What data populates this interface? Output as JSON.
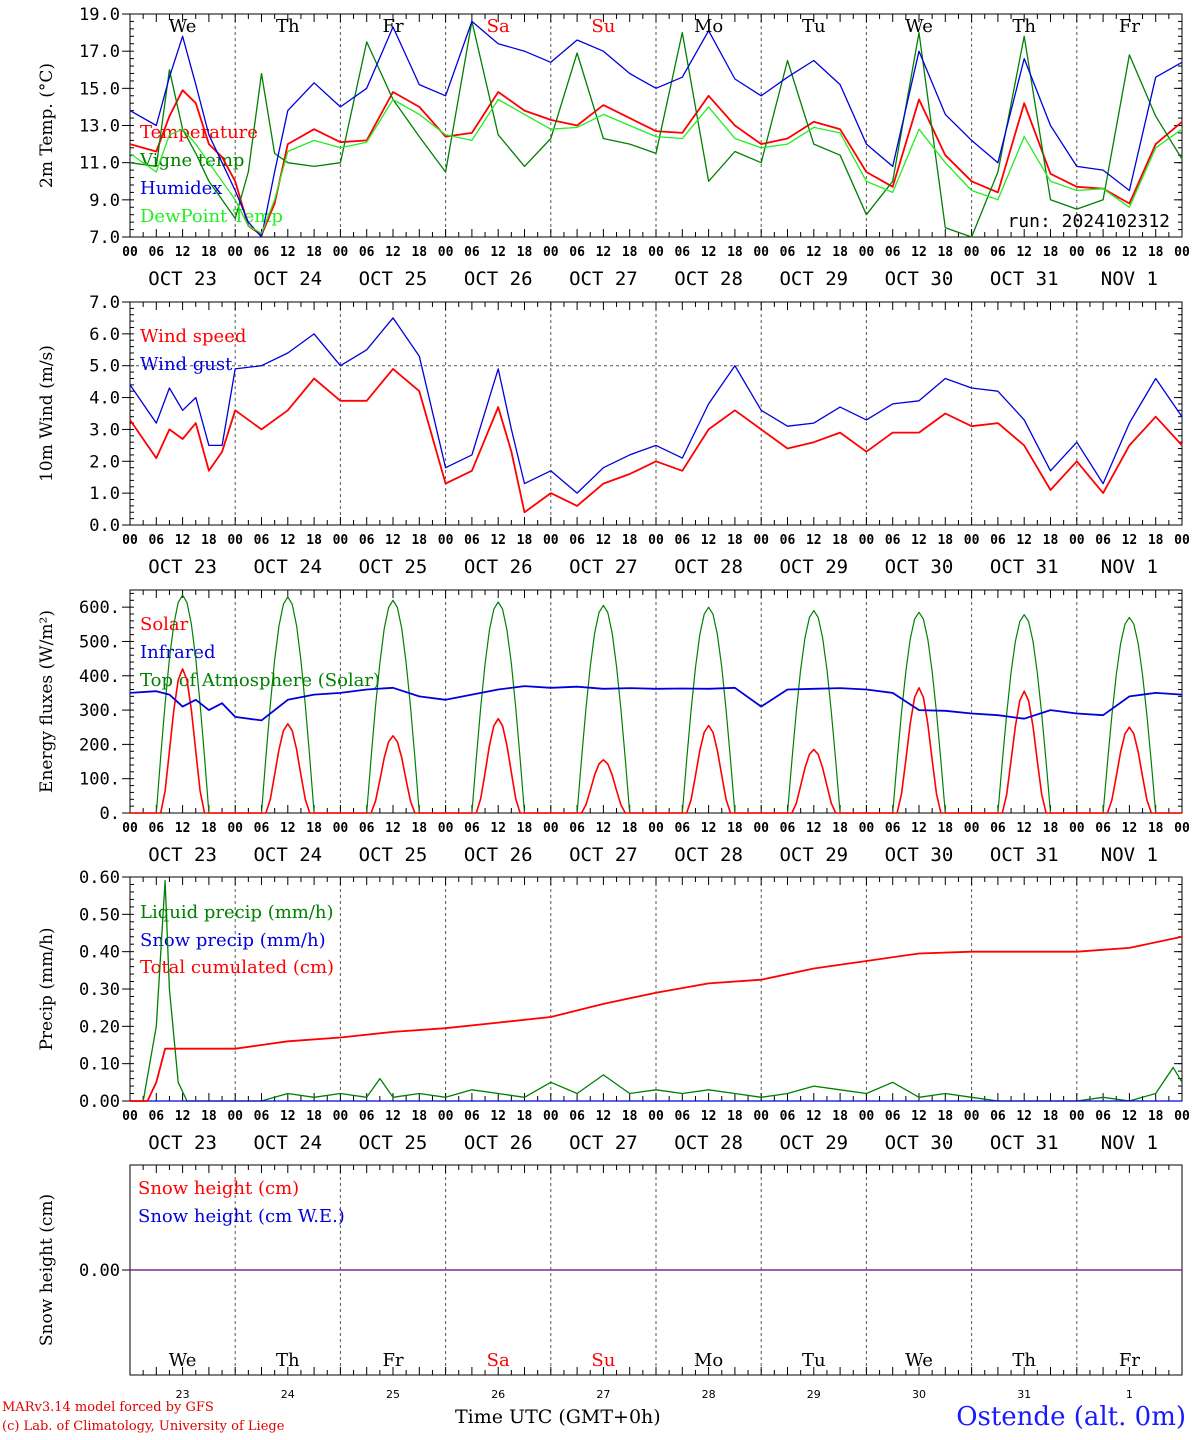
{
  "colors": {
    "red": "#ff0000",
    "green": "#008000",
    "lightgreen": "#22ee22",
    "blue": "#0000dd",
    "grid": "#555555",
    "snowline": "#7a2c9a"
  },
  "days": [
    "OCT 23",
    "OCT 24",
    "OCT 25",
    "OCT 26",
    "OCT 27",
    "OCT 28",
    "OCT 29",
    "OCT 30",
    "OCT 31",
    "NOV  1"
  ],
  "weekdays": [
    "We",
    "Th",
    "Fr",
    "Sa",
    "Su",
    "Mo",
    "Tu",
    "We",
    "Th",
    "Fr"
  ],
  "weekday_colors": [
    "black",
    "black",
    "black",
    "red",
    "red",
    "black",
    "black",
    "black",
    "black",
    "black"
  ],
  "day_numbers": [
    "23",
    "24",
    "25",
    "26",
    "27",
    "28",
    "29",
    "30",
    "31",
    "1"
  ],
  "hour_labels": [
    "00",
    "06",
    "12",
    "18"
  ],
  "footer": {
    "credit1": "MARv3.14 model forced by GFS",
    "credit2": "(c) Lab. of Climatology, University of Liege",
    "xaxis_title": "Time UTC (GMT+0h)",
    "station": "Ostende (alt. 0m)"
  },
  "chart_data": [
    {
      "type": "line",
      "ylabel": "2m Temp. (°C)",
      "ylim": [
        7.0,
        19.0
      ],
      "yticks": [
        "7.0",
        "9.0",
        "11.0",
        "13.0",
        "15.0",
        "17.0",
        "19.0"
      ],
      "annotation": "run: 2024102312",
      "x_unit": "hours since OCT 23 00 UTC",
      "series": [
        {
          "name": "Temperature",
          "color": "red",
          "x": [
            0,
            6,
            9,
            12,
            15,
            18,
            21,
            24,
            27,
            30,
            33,
            36,
            42,
            48,
            54,
            60,
            66,
            72,
            78,
            84,
            90,
            96,
            102,
            108,
            114,
            120,
            126,
            132,
            138,
            144,
            150,
            156,
            162,
            168,
            174,
            180,
            186,
            192,
            198,
            204,
            210,
            216,
            222,
            228,
            234,
            240
          ],
          "y": [
            12.0,
            11.6,
            13.5,
            14.9,
            14.2,
            12.0,
            11.3,
            10.0,
            7.6,
            7.1,
            8.8,
            12.0,
            12.8,
            12.1,
            12.2,
            14.8,
            14.0,
            12.4,
            12.6,
            14.8,
            13.8,
            13.3,
            13.0,
            14.1,
            13.4,
            12.7,
            12.6,
            14.6,
            13.0,
            12.0,
            12.3,
            13.2,
            12.8,
            10.5,
            9.7,
            14.4,
            11.4,
            10.0,
            9.4,
            14.2,
            10.4,
            9.7,
            9.6,
            8.8,
            12.0,
            13.2
          ]
        },
        {
          "name": "Vigne temp",
          "color": "green",
          "x": [
            0,
            6,
            9,
            12,
            15,
            18,
            21,
            24,
            27,
            30,
            33,
            36,
            42,
            48,
            54,
            60,
            66,
            72,
            78,
            84,
            90,
            96,
            102,
            108,
            114,
            120,
            126,
            132,
            138,
            144,
            150,
            156,
            162,
            168,
            174,
            180,
            186,
            192,
            198,
            204,
            210,
            216,
            222,
            228,
            234,
            240
          ],
          "y": [
            11.0,
            10.8,
            16.0,
            12.8,
            11.5,
            10.0,
            9.0,
            8.0,
            10.5,
            15.8,
            11.5,
            11.0,
            10.8,
            11.0,
            17.5,
            14.4,
            12.4,
            10.5,
            18.6,
            12.5,
            10.8,
            12.3,
            16.9,
            12.3,
            12.0,
            11.5,
            18.0,
            10.0,
            11.6,
            11.0,
            16.5,
            12.0,
            11.4,
            8.2,
            10.0,
            18.0,
            7.5,
            6.0,
            10.5,
            17.8,
            9.0,
            8.5,
            9.0,
            16.8,
            13.5,
            11.2
          ]
        },
        {
          "name": "Humidex",
          "color": "blue",
          "x": [
            0,
            6,
            9,
            12,
            15,
            18,
            21,
            24,
            27,
            30,
            33,
            36,
            42,
            48,
            54,
            60,
            66,
            72,
            78,
            84,
            90,
            96,
            102,
            108,
            114,
            120,
            126,
            132,
            138,
            144,
            150,
            156,
            162,
            168,
            174,
            180,
            186,
            192,
            198,
            204,
            210,
            216,
            222,
            228,
            234,
            240
          ],
          "y": [
            13.8,
            13.0,
            15.6,
            17.8,
            15.2,
            12.5,
            11.0,
            9.5,
            7.8,
            7.0,
            10.5,
            13.8,
            15.3,
            14.0,
            15.0,
            18.3,
            15.2,
            14.6,
            18.6,
            17.4,
            17.0,
            16.4,
            17.6,
            17.0,
            15.8,
            15.0,
            15.6,
            18.1,
            15.5,
            14.6,
            15.6,
            16.5,
            15.2,
            12.0,
            10.8,
            17.0,
            13.6,
            12.2,
            11.0,
            16.6,
            13.0,
            10.8,
            10.6,
            9.5,
            15.6,
            16.4
          ]
        },
        {
          "name": "DewPoint Temp",
          "color": "lightgreen",
          "x": [
            0,
            6,
            9,
            12,
            15,
            18,
            21,
            24,
            27,
            30,
            33,
            36,
            42,
            48,
            54,
            60,
            66,
            72,
            78,
            84,
            90,
            96,
            102,
            108,
            114,
            120,
            126,
            132,
            138,
            144,
            150,
            156,
            162,
            168,
            174,
            180,
            186,
            192,
            198,
            204,
            210,
            216,
            222,
            228,
            234,
            240
          ],
          "y": [
            11.5,
            10.5,
            12.5,
            12.8,
            12.0,
            11.0,
            10.0,
            9.0,
            7.6,
            7.2,
            9.0,
            11.6,
            12.2,
            11.8,
            12.1,
            14.4,
            13.6,
            12.5,
            12.2,
            14.4,
            13.6,
            12.8,
            12.9,
            13.6,
            13.0,
            12.4,
            12.3,
            14.0,
            12.3,
            11.8,
            12.0,
            12.9,
            12.6,
            10.0,
            9.4,
            12.8,
            11.0,
            9.5,
            9.0,
            12.4,
            10.0,
            9.5,
            9.6,
            8.6,
            11.8,
            12.8
          ]
        }
      ]
    },
    {
      "type": "line",
      "ylabel": "10m Wind (m/s)",
      "ylim": [
        0.0,
        7.0
      ],
      "yticks": [
        "0.0",
        "1.0",
        "2.0",
        "3.0",
        "4.0",
        "5.0",
        "6.0",
        "7.0"
      ],
      "ref_line": 5.0,
      "x_unit": "hours since OCT 23 00 UTC",
      "series": [
        {
          "name": "Wind speed",
          "color": "red",
          "x": [
            0,
            6,
            9,
            12,
            15,
            18,
            21,
            24,
            30,
            36,
            42,
            48,
            54,
            60,
            66,
            72,
            78,
            84,
            87,
            90,
            96,
            102,
            108,
            114,
            120,
            126,
            132,
            138,
            144,
            150,
            156,
            162,
            168,
            174,
            180,
            186,
            192,
            198,
            204,
            210,
            216,
            222,
            228,
            234,
            240
          ],
          "y": [
            3.3,
            2.1,
            3.0,
            2.7,
            3.2,
            1.7,
            2.3,
            3.6,
            3.0,
            3.6,
            4.6,
            3.9,
            3.9,
            4.9,
            4.2,
            1.3,
            1.7,
            3.7,
            2.3,
            0.4,
            1.0,
            0.6,
            1.3,
            1.6,
            2.0,
            1.7,
            3.0,
            3.6,
            3.0,
            2.4,
            2.6,
            2.9,
            2.3,
            2.9,
            2.9,
            3.5,
            3.1,
            3.2,
            2.5,
            1.1,
            2.0,
            1.0,
            2.5,
            3.4,
            2.5
          ]
        },
        {
          "name": "Wind gust",
          "color": "blue",
          "x": [
            0,
            6,
            9,
            12,
            15,
            18,
            21,
            24,
            30,
            36,
            42,
            48,
            54,
            60,
            66,
            72,
            78,
            84,
            87,
            90,
            96,
            102,
            108,
            114,
            120,
            126,
            132,
            138,
            144,
            150,
            156,
            162,
            168,
            174,
            180,
            186,
            192,
            198,
            204,
            210,
            216,
            222,
            228,
            234,
            240
          ],
          "y": [
            4.4,
            3.2,
            4.3,
            3.6,
            4.0,
            2.5,
            2.5,
            4.9,
            5.0,
            5.4,
            6.0,
            5.0,
            5.5,
            6.5,
            5.3,
            1.8,
            2.2,
            4.9,
            3.0,
            1.3,
            1.7,
            1.0,
            1.8,
            2.2,
            2.5,
            2.1,
            3.8,
            5.0,
            3.6,
            3.1,
            3.2,
            3.7,
            3.3,
            3.8,
            3.9,
            4.6,
            4.3,
            4.2,
            3.3,
            1.7,
            2.6,
            1.3,
            3.2,
            4.6,
            3.4
          ]
        }
      ]
    },
    {
      "type": "line",
      "ylabel": "Energy fluxes (W/m²)",
      "ylim": [
        0,
        650
      ],
      "yticks": [
        "0.",
        "100.",
        "200.",
        "300.",
        "400.",
        "500.",
        "600."
      ],
      "x_unit": "hours since OCT 23 00 UTC",
      "daily_solar_peak": [
        420,
        260,
        225,
        275,
        155,
        255,
        185,
        365,
        355,
        250
      ],
      "daily_toa_peak": [
        635,
        630,
        620,
        615,
        605,
        600,
        590,
        585,
        578,
        570
      ],
      "series": [
        {
          "name": "Solar",
          "color": "red"
        },
        {
          "name": "Infrared",
          "color": "blue",
          "x": [
            0,
            6,
            9,
            12,
            15,
            18,
            21,
            24,
            30,
            36,
            42,
            48,
            54,
            60,
            66,
            72,
            78,
            84,
            90,
            96,
            102,
            108,
            114,
            120,
            126,
            132,
            138,
            144,
            150,
            156,
            162,
            168,
            174,
            180,
            186,
            192,
            198,
            204,
            210,
            216,
            222,
            228,
            234,
            240
          ],
          "y": [
            350,
            355,
            345,
            310,
            330,
            300,
            320,
            280,
            270,
            330,
            345,
            350,
            360,
            365,
            340,
            330,
            345,
            360,
            370,
            365,
            368,
            362,
            364,
            362,
            363,
            362,
            365,
            310,
            360,
            362,
            364,
            360,
            350,
            300,
            298,
            290,
            285,
            275,
            300,
            290,
            285,
            340,
            350,
            345
          ]
        },
        {
          "name": "Top of Atmosphere (Solar)",
          "color": "green"
        }
      ]
    },
    {
      "type": "line",
      "ylabel": "Precip (mm/h)",
      "ylim": [
        0.0,
        0.6
      ],
      "yticks": [
        "0.00",
        "0.10",
        "0.20",
        "0.30",
        "0.40",
        "0.50",
        "0.60"
      ],
      "x_unit": "hours since OCT 23 00 UTC",
      "series": [
        {
          "name": "Liquid precip (mm/h)",
          "color": "green",
          "x": [
            0,
            3,
            6,
            8,
            9,
            11,
            13,
            15,
            18,
            24,
            30,
            33,
            36,
            42,
            48,
            54,
            57,
            60,
            66,
            72,
            78,
            84,
            90,
            96,
            102,
            108,
            114,
            120,
            126,
            132,
            138,
            144,
            150,
            156,
            162,
            168,
            174,
            180,
            186,
            192,
            198,
            204,
            210,
            216,
            222,
            228,
            234,
            238,
            240
          ],
          "y": [
            0,
            0,
            0.2,
            0.59,
            0.3,
            0.05,
            0,
            0,
            0,
            0,
            0,
            0.01,
            0.02,
            0.01,
            0.02,
            0.01,
            0.06,
            0.01,
            0.02,
            0.01,
            0.03,
            0.02,
            0.01,
            0.05,
            0.02,
            0.07,
            0.02,
            0.03,
            0.02,
            0.03,
            0.02,
            0.01,
            0.02,
            0.04,
            0.03,
            0.02,
            0.05,
            0.01,
            0.02,
            0.01,
            0,
            0,
            0,
            0,
            0.01,
            0,
            0.02,
            0.09,
            0.05
          ]
        },
        {
          "name": "Snow precip (mm/h)",
          "color": "blue",
          "x": [
            0,
            240
          ],
          "y": [
            0,
            0
          ]
        },
        {
          "name": "Total cumulated (cm)",
          "color": "red",
          "x": [
            0,
            4,
            6,
            8,
            12,
            24,
            30,
            36,
            48,
            60,
            72,
            84,
            96,
            108,
            120,
            132,
            144,
            156,
            168,
            180,
            192,
            204,
            216,
            228,
            240
          ],
          "y": [
            0,
            0,
            0.05,
            0.14,
            0.14,
            0.14,
            0.15,
            0.16,
            0.17,
            0.185,
            0.195,
            0.21,
            0.225,
            0.26,
            0.29,
            0.315,
            0.325,
            0.355,
            0.375,
            0.395,
            0.4,
            0.4,
            0.4,
            0.41,
            0.44
          ]
        }
      ]
    },
    {
      "type": "line",
      "ylabel": "Snow height (cm)",
      "ylim": [
        -1.0,
        1.0
      ],
      "yticks": [
        "0.00"
      ],
      "series": [
        {
          "name": "Snow height (cm)",
          "color": "red",
          "x": [
            0,
            240
          ],
          "y": [
            0,
            0
          ]
        },
        {
          "name": "Snow height (cm W.E.)",
          "color": "blue",
          "x": [
            0,
            240
          ],
          "y": [
            0,
            0
          ]
        }
      ]
    }
  ]
}
